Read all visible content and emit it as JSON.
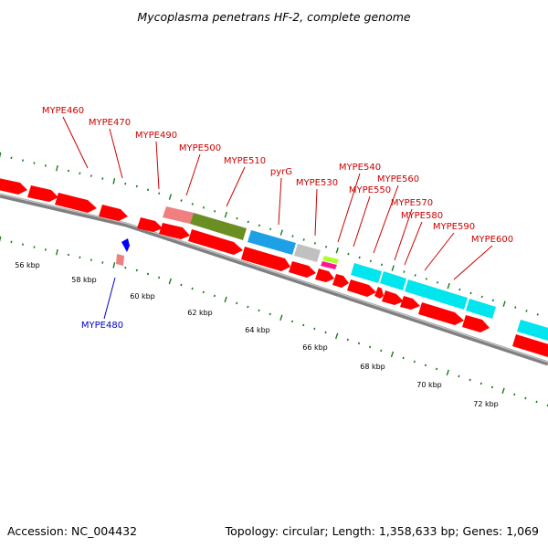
{
  "title": "Mycoplasma penetrans HF-2, complete genome",
  "footer": {
    "accession": "Accession: NC_004432",
    "summary": "Topology: circular; Length: 1,358,633 bp; Genes: 1,069"
  },
  "colors": {
    "cds": "#ff0000",
    "cds_light": "#f08080",
    "olive": "#6b8e23",
    "blue": "#1ea0e6",
    "cyan": "#00e5ee",
    "grey": "#c0c0c0",
    "magenta": "#ff1493",
    "lime": "#adff2f",
    "label_forward": "#cc0000",
    "label_reverse": "#0000cc",
    "tick": "#1a7a1a",
    "backbone": "#808080"
  },
  "scale_labels": [
    "56 kbp",
    "58 kbp",
    "60 kbp",
    "62 kbp",
    "64 kbp",
    "66 kbp",
    "68 kbp",
    "70 kbp",
    "72 kbp"
  ],
  "gene_labels": [
    {
      "text": "MYPE460",
      "strand": "forward"
    },
    {
      "text": "MYPE470",
      "strand": "forward"
    },
    {
      "text": "MYPE490",
      "strand": "forward"
    },
    {
      "text": "MYPE500",
      "strand": "forward"
    },
    {
      "text": "MYPE510",
      "strand": "forward"
    },
    {
      "text": "pyrG",
      "strand": "forward"
    },
    {
      "text": "MYPE530",
      "strand": "forward"
    },
    {
      "text": "MYPE540",
      "strand": "forward"
    },
    {
      "text": "MYPE550",
      "strand": "forward"
    },
    {
      "text": "MYPE560",
      "strand": "forward"
    },
    {
      "text": "MYPE570",
      "strand": "forward"
    },
    {
      "text": "MYPE580",
      "strand": "forward"
    },
    {
      "text": "MYPE590",
      "strand": "forward"
    },
    {
      "text": "MYPE600",
      "strand": "forward"
    },
    {
      "text": "MYPE480",
      "strand": "reverse"
    }
  ]
}
